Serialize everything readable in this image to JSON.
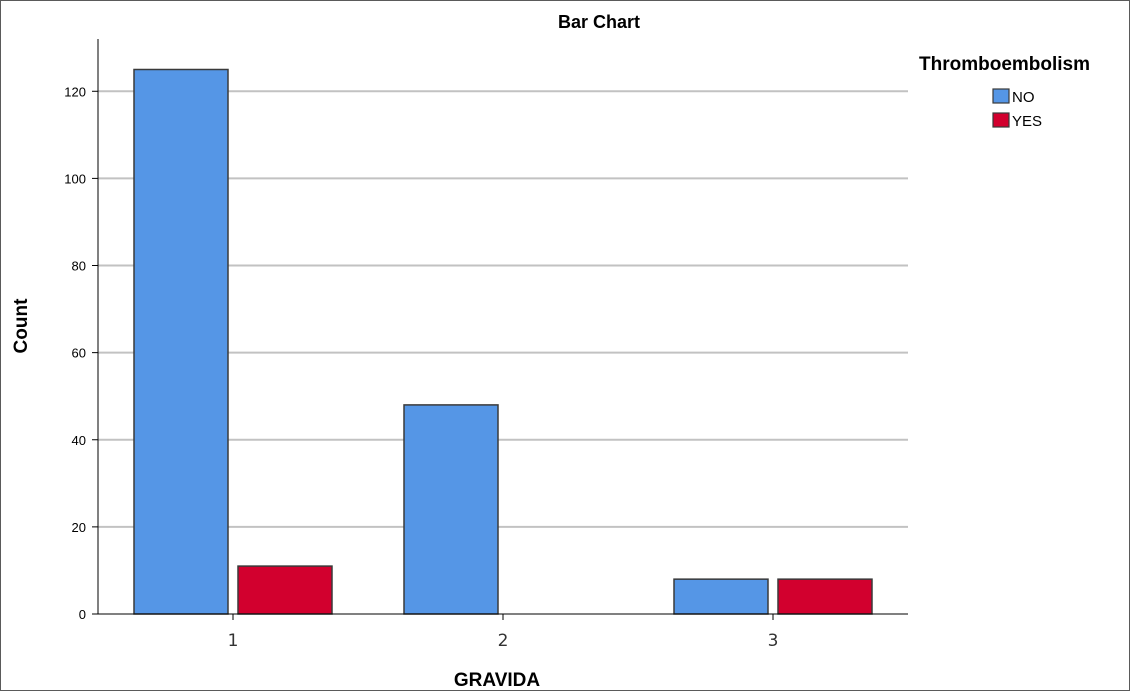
{
  "chart_data": {
    "type": "bar",
    "title": "Bar Chart",
    "xlabel": "GRAVIDA",
    "ylabel": "Count",
    "categories": [
      "1",
      "2",
      "3"
    ],
    "series": [
      {
        "name": "NO",
        "values": [
          125,
          48,
          8
        ],
        "color": "#5596e6"
      },
      {
        "name": "YES",
        "values": [
          11,
          0,
          8
        ],
        "color": "#d2002e"
      }
    ],
    "ylim": [
      0,
      132
    ],
    "yticks": [
      0,
      20,
      40,
      60,
      80,
      100,
      120
    ],
    "grid": true,
    "legend": {
      "title": "Thromboembolism",
      "placement": "top-right"
    }
  }
}
